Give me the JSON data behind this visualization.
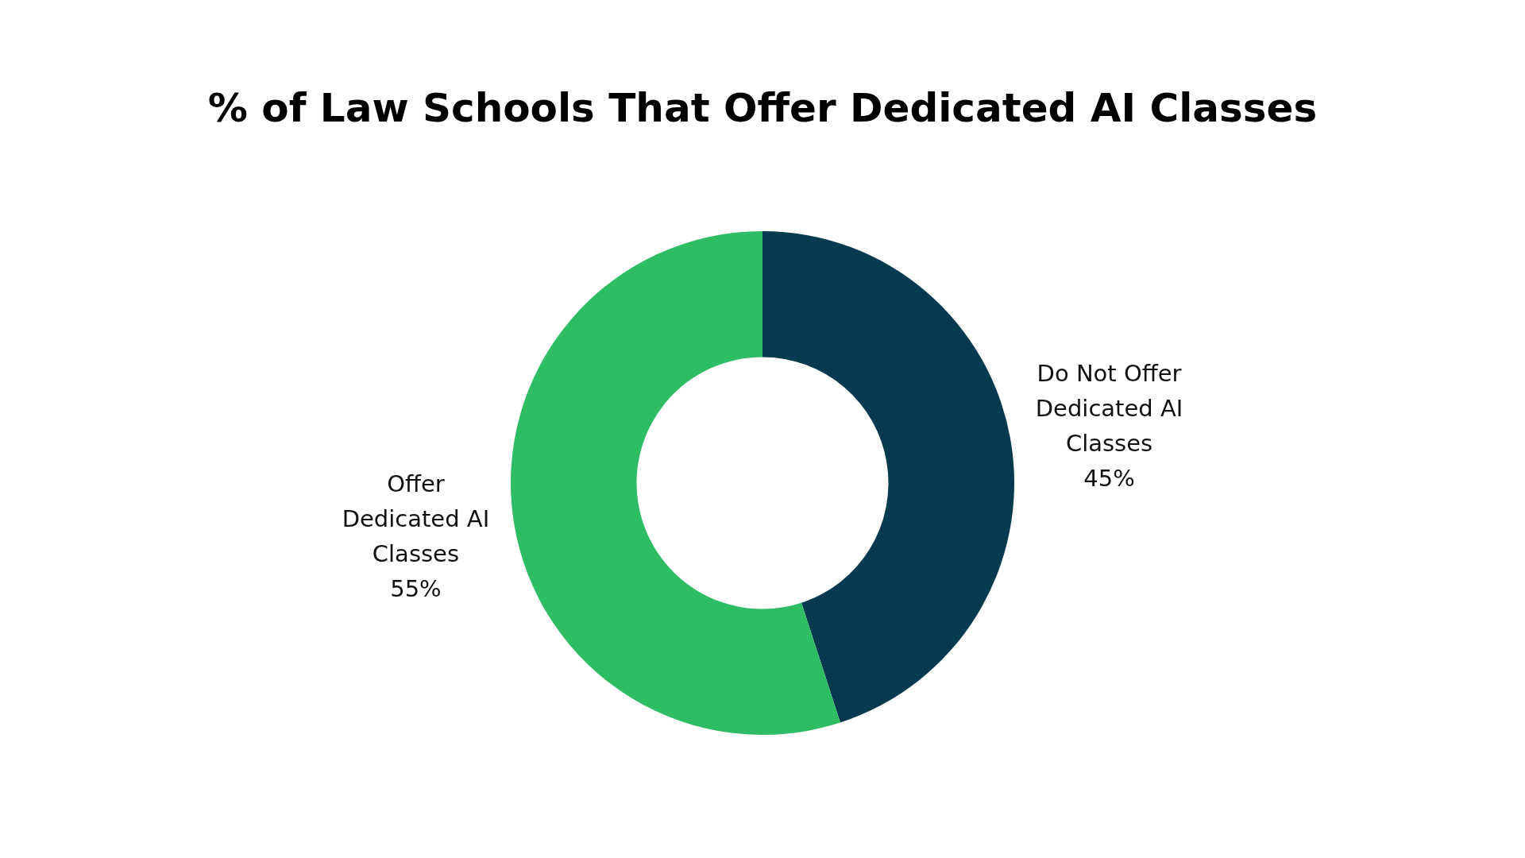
{
  "chart_data": {
    "type": "donut",
    "title": "% of Law Schools That Offer Dedicated AI Classes",
    "categories": [
      "Do Not Offer Dedicated AI Classes",
      "Offer Dedicated AI Classes"
    ],
    "values": [
      45,
      55
    ],
    "colors": [
      "#053a4f",
      "#2ebd64"
    ],
    "value_labels": [
      "45%",
      "55%"
    ],
    "legend": false
  }
}
